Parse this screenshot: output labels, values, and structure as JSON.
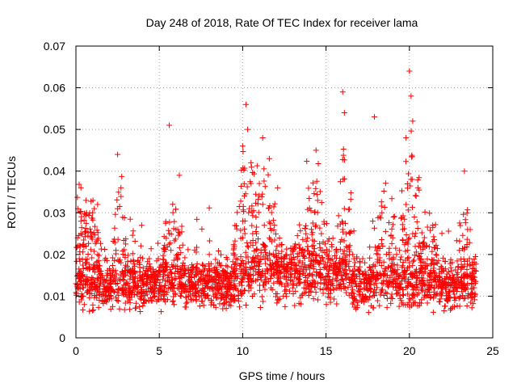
{
  "chart_data": {
    "type": "scatter",
    "title": "Day 248 of 2018, Rate Of TEC Index for receiver lama",
    "xlabel": "GPS time / hours",
    "ylabel": "ROTI / TECUs",
    "xlim": [
      0,
      25
    ],
    "ylim": [
      0,
      0.07
    ],
    "xticks": [
      0,
      5,
      10,
      15,
      20,
      25
    ],
    "xtick_labels": [
      "0",
      "5",
      "10",
      "15",
      "20",
      "25"
    ],
    "yticks": [
      0,
      0.01,
      0.02,
      0.03,
      0.04,
      0.05,
      0.06,
      0.07
    ],
    "ytick_labels": [
      "0",
      "0.01",
      "0.02",
      "0.03",
      "0.04",
      "0.05",
      "0.06",
      "0.07"
    ],
    "grid": true,
    "marker": "plus",
    "marker_color": "#ff0000",
    "axis_color": "#000000",
    "grid_color": "#a0a0a0",
    "series": [
      {
        "name": "ROTI",
        "x": [
          0.0,
          0.1,
          0.15,
          0.2,
          0.25,
          0.3,
          0.35,
          0.4,
          0.45,
          0.5,
          0.55,
          0.6,
          0.7,
          0.8,
          0.9,
          1.0,
          1.1,
          1.2,
          1.3,
          1.4,
          1.5,
          1.6,
          1.7,
          1.8,
          1.9,
          2.0,
          2.1,
          2.2,
          2.3,
          2.4,
          2.5,
          2.6,
          2.7,
          2.8,
          2.9,
          3.0,
          3.2,
          3.4,
          3.6,
          3.8,
          4.0,
          4.2,
          4.4,
          4.6,
          4.8,
          5.0,
          5.2,
          5.4,
          5.6,
          5.7,
          5.8,
          5.9,
          6.0,
          6.1,
          6.2,
          6.4,
          6.6,
          6.8,
          7.0,
          7.2,
          7.4,
          7.6,
          7.8,
          8.0,
          8.2,
          8.4,
          8.6,
          8.8,
          9.0,
          9.2,
          9.4,
          9.6,
          9.8,
          10.0,
          10.1,
          10.2,
          10.3,
          10.4,
          10.5,
          10.6,
          10.7,
          10.8,
          10.9,
          11.0,
          11.1,
          11.2,
          11.3,
          11.4,
          11.5,
          11.6,
          11.7,
          11.8,
          11.9,
          12.0,
          12.2,
          12.4,
          12.6,
          12.8,
          13.0,
          13.2,
          13.4,
          13.6,
          13.8,
          14.0,
          14.2,
          14.4,
          14.6,
          14.8,
          15.0,
          15.2,
          15.4,
          15.6,
          15.8,
          16.0,
          16.1,
          16.2,
          16.4,
          16.6,
          16.8,
          17.0,
          17.2,
          17.4,
          17.6,
          17.8,
          18.0,
          18.2,
          18.4,
          18.6,
          18.8,
          19.0,
          19.2,
          19.4,
          19.6,
          19.8,
          20.0,
          20.1,
          20.2,
          20.3,
          20.4,
          20.6,
          20.8,
          21.0,
          21.2,
          21.4,
          21.6,
          21.8,
          22.0,
          22.2,
          22.4,
          22.6,
          22.8,
          23.0,
          23.2,
          23.4,
          23.6,
          23.8,
          24.0,
          0.3,
          0.6,
          1.0,
          1.3,
          2.5,
          2.7,
          5.6,
          6.2,
          10.0,
          10.2,
          10.3,
          10.5,
          11.2,
          11.6,
          12.1,
          14.4,
          14.5,
          16.0,
          16.1,
          17.9,
          19.8,
          20.0,
          20.1,
          20.2,
          23.3
        ],
        "y": [
          0.013,
          0.024,
          0.012,
          0.019,
          0.016,
          0.028,
          0.01,
          0.015,
          0.012,
          0.008,
          0.013,
          0.022,
          0.011,
          0.017,
          0.025,
          0.013,
          0.031,
          0.012,
          0.02,
          0.009,
          0.016,
          0.011,
          0.014,
          0.009,
          0.012,
          0.01,
          0.013,
          0.015,
          0.011,
          0.021,
          0.031,
          0.014,
          0.018,
          0.012,
          0.015,
          0.013,
          0.016,
          0.014,
          0.012,
          0.018,
          0.015,
          0.013,
          0.019,
          0.011,
          0.016,
          0.012,
          0.014,
          0.018,
          0.025,
          0.021,
          0.017,
          0.012,
          0.026,
          0.019,
          0.013,
          0.015,
          0.011,
          0.014,
          0.017,
          0.012,
          0.016,
          0.013,
          0.015,
          0.02,
          0.012,
          0.014,
          0.018,
          0.013,
          0.015,
          0.012,
          0.016,
          0.019,
          0.013,
          0.028,
          0.034,
          0.016,
          0.022,
          0.031,
          0.012,
          0.025,
          0.018,
          0.029,
          0.014,
          0.037,
          0.021,
          0.016,
          0.027,
          0.013,
          0.019,
          0.024,
          0.012,
          0.018,
          0.015,
          0.021,
          0.013,
          0.017,
          0.014,
          0.019,
          0.012,
          0.016,
          0.014,
          0.018,
          0.011,
          0.02,
          0.013,
          0.027,
          0.015,
          0.019,
          0.012,
          0.017,
          0.014,
          0.021,
          0.016,
          0.026,
          0.031,
          0.018,
          0.014,
          0.02,
          0.013,
          0.016,
          0.019,
          0.012,
          0.017,
          0.028,
          0.014,
          0.018,
          0.022,
          0.015,
          0.019,
          0.024,
          0.014,
          0.021,
          0.026,
          0.032,
          0.018,
          0.038,
          0.025,
          0.029,
          0.016,
          0.019,
          0.013,
          0.022,
          0.015,
          0.027,
          0.018,
          0.014,
          0.016,
          0.012,
          0.011,
          0.015,
          0.013,
          0.021,
          0.017,
          0.012,
          0.019,
          0.014,
          0.016,
          0.036,
          0.033,
          0.03,
          0.032,
          0.044,
          0.036,
          0.051,
          0.039,
          0.046,
          0.056,
          0.05,
          0.042,
          0.048,
          0.043,
          0.036,
          0.045,
          0.033,
          0.059,
          0.054,
          0.053,
          0.048,
          0.064,
          0.058,
          0.052,
          0.04
        ]
      }
    ],
    "noise_points": 2600
  }
}
